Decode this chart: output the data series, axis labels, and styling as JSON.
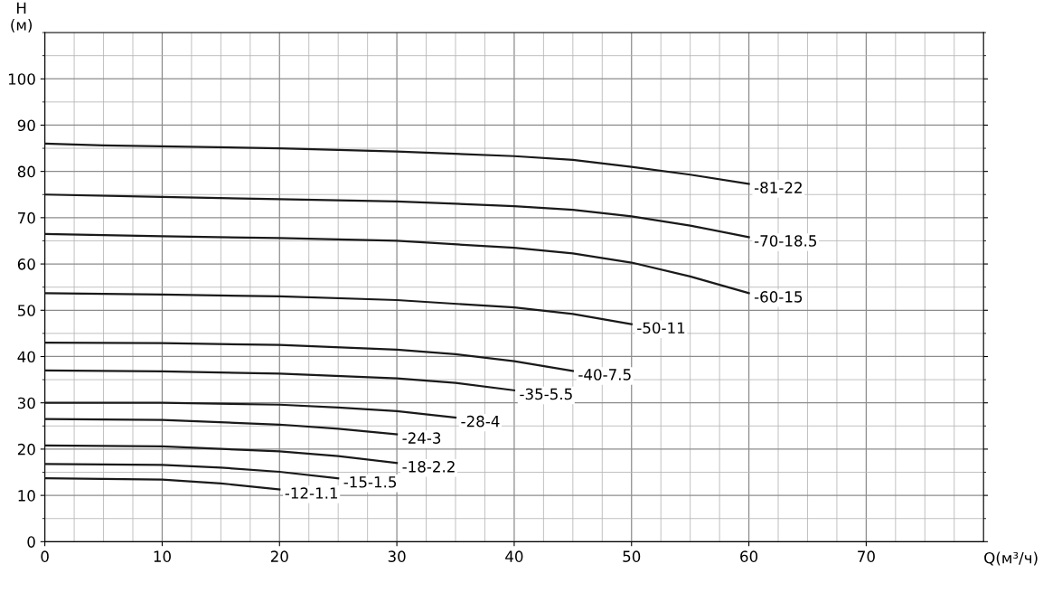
{
  "chart_data": {
    "type": "line",
    "xlabel": "Q(м³/ч)",
    "ylabel": "H\n(м)",
    "xlim": [
      0,
      80
    ],
    "ylim": [
      0,
      110
    ],
    "xticks": [
      0,
      10,
      20,
      30,
      40,
      50,
      60,
      70
    ],
    "yticks": [
      0,
      10,
      20,
      30,
      40,
      50,
      60,
      70,
      80,
      90,
      100
    ],
    "grid": true,
    "marker": "none",
    "line_style": "solid",
    "series": [
      {
        "color": "#1a1a1a",
        "x": [
          0,
          5,
          20,
          30,
          40,
          45,
          50,
          55,
          60
        ],
        "values": [
          86,
          85.6,
          85,
          84.3,
          83.3,
          82.5,
          81,
          79.3,
          77.3
        ]
      },
      {
        "color": "#1a1a1a",
        "x": [
          0,
          10,
          20,
          30,
          40,
          45,
          50,
          55,
          60
        ],
        "values": [
          75,
          74.5,
          74,
          73.5,
          72.5,
          71.7,
          70.3,
          68.3,
          65.8
        ]
      },
      {
        "color": "#1a1a1a",
        "x": [
          0,
          10,
          20,
          30,
          40,
          45,
          50,
          55,
          60
        ],
        "values": [
          66.5,
          66,
          65.6,
          65,
          63.5,
          62.3,
          60.3,
          57.3,
          53.7
        ]
      },
      {
        "color": "#1a1a1a",
        "x": [
          0,
          10,
          20,
          30,
          40,
          45,
          50
        ],
        "values": [
          53.7,
          53.4,
          53,
          52.2,
          50.6,
          49.2,
          47
        ]
      },
      {
        "color": "#1a1a1a",
        "x": [
          0,
          10,
          20,
          30,
          35,
          40,
          45
        ],
        "values": [
          43,
          42.9,
          42.5,
          41.5,
          40.5,
          39,
          36.9
        ]
      },
      {
        "color": "#1a1a1a",
        "x": [
          0,
          10,
          20,
          30,
          35,
          40
        ],
        "values": [
          37,
          36.8,
          36.3,
          35.3,
          34.3,
          32.7
        ]
      },
      {
        "color": "#1a1a1a",
        "x": [
          0,
          10,
          20,
          25,
          30,
          35
        ],
        "values": [
          30,
          30,
          29.6,
          29,
          28.2,
          26.8
        ]
      },
      {
        "color": "#1a1a1a",
        "x": [
          0,
          10,
          20,
          25,
          30
        ],
        "values": [
          26.5,
          26.3,
          25.3,
          24.4,
          23.2
        ]
      },
      {
        "color": "#1a1a1a",
        "x": [
          0,
          10,
          20,
          25,
          30
        ],
        "values": [
          20.8,
          20.6,
          19.5,
          18.5,
          17
        ]
      },
      {
        "color": "#1a1a1a",
        "x": [
          0,
          10,
          15,
          20,
          25
        ],
        "values": [
          16.8,
          16.6,
          16,
          15.1,
          13.7
        ]
      },
      {
        "color": "#1a1a1a",
        "x": [
          0,
          10,
          15,
          20
        ],
        "values": [
          13.7,
          13.4,
          12.6,
          11.3
        ]
      }
    ],
    "annotations": [
      {
        "text": "-81-22",
        "x": 60,
        "y": 77.3
      },
      {
        "text": "-70-18.5",
        "x": 60,
        "y": 65.8
      },
      {
        "text": "-60-15",
        "x": 60,
        "y": 53.7
      },
      {
        "text": "-50-11",
        "x": 50,
        "y": 47
      },
      {
        "text": "-40-7.5",
        "x": 45,
        "y": 36.9
      },
      {
        "text": "-35-5.5",
        "x": 40,
        "y": 32.7
      },
      {
        "text": "-28-4",
        "x": 35,
        "y": 26.8
      },
      {
        "text": "-24-3",
        "x": 30,
        "y": 23.2
      },
      {
        "text": "-18-2.2",
        "x": 30,
        "y": 17
      },
      {
        "text": "-15-1.5",
        "x": 25,
        "y": 13.7
      },
      {
        "text": "-12-1.1",
        "x": 20,
        "y": 11.3
      }
    ]
  }
}
